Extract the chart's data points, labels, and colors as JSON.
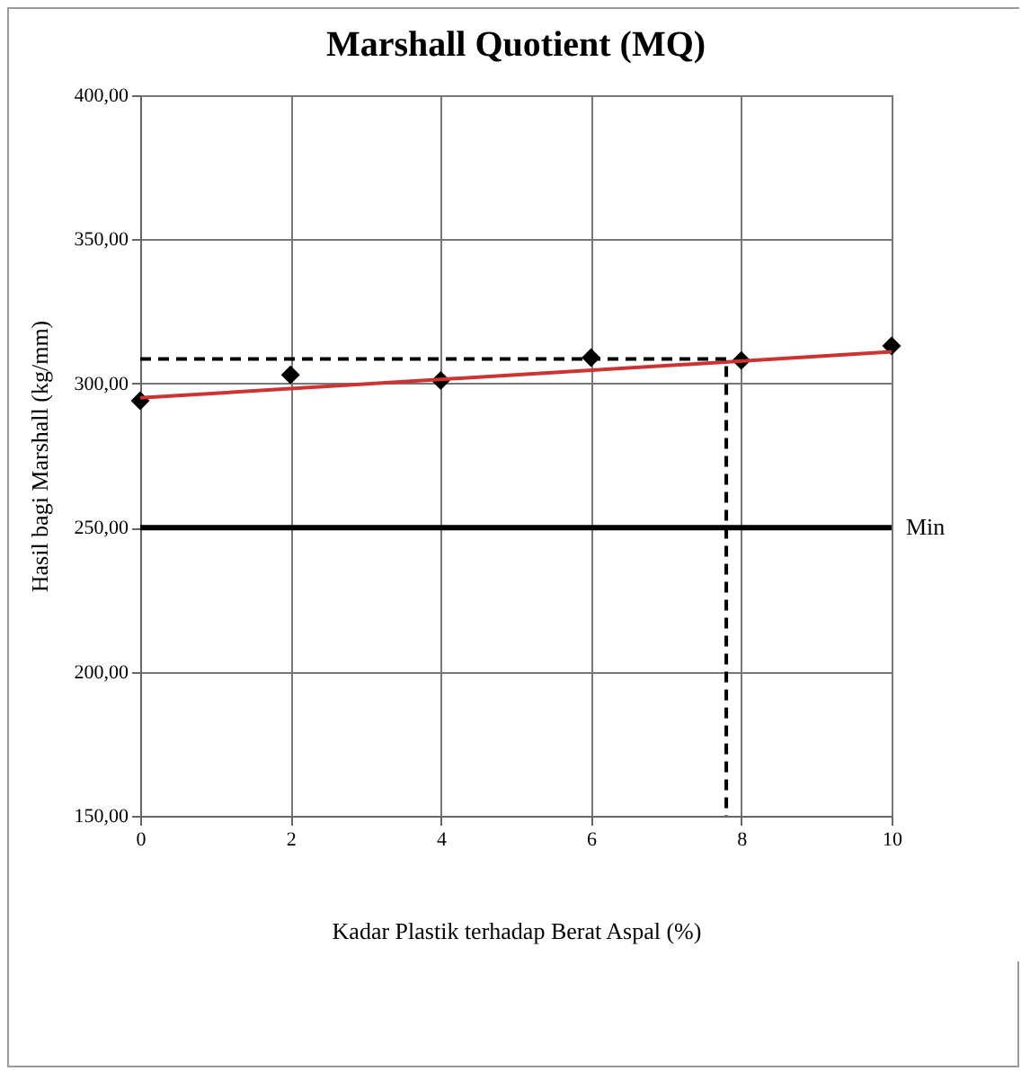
{
  "chart_data": {
    "type": "scatter",
    "title": "Marshall Quotient (MQ)",
    "xlabel": "Kadar Plastik terhadap Berat Aspal (%)",
    "ylabel": "Hasil bagi Marshall (kg/mm)",
    "x": [
      0,
      2,
      4,
      6,
      8,
      10
    ],
    "series": [
      {
        "color": "#000000",
        "marker": "diamond",
        "values": [
          294,
          303,
          301,
          309,
          308,
          313
        ]
      },
      {
        "type": "line",
        "color": "#cc3333",
        "x": [
          0,
          10
        ],
        "values": [
          295,
          311
        ]
      },
      {
        "type": "line",
        "color": "#000000",
        "line_style": "dashed",
        "x": [
          0,
          7.8,
          7.8
        ],
        "values": [
          308.5,
          308.5,
          150
        ]
      }
    ],
    "xlim": [
      0,
      10
    ],
    "xticks": [
      0,
      2,
      4,
      6,
      8,
      10
    ],
    "ylim": [
      150,
      400
    ],
    "yticks": [
      {
        "value": 150,
        "label": "150,00"
      },
      {
        "value": 200,
        "label": "200,00"
      },
      {
        "value": 250,
        "label": "250,00"
      },
      {
        "value": 300,
        "label": "300,00"
      },
      {
        "value": 350,
        "label": "350,00"
      },
      {
        "value": 400,
        "label": "400,00"
      }
    ],
    "grid": true,
    "ref_lines": [
      {
        "axis": "y",
        "value": 250,
        "label": "Min",
        "color": "#000000"
      }
    ]
  }
}
